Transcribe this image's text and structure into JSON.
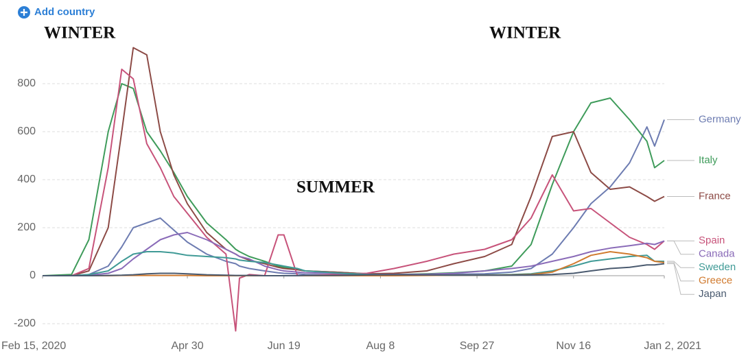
{
  "add_button": "Add country",
  "chart_data": {
    "type": "line",
    "annotations": [
      "WINTER",
      "WINTER",
      "SUMMER"
    ],
    "x": [
      "2020-02-15",
      "2020-03-01",
      "2020-03-10",
      "2020-03-20",
      "2020-03-27",
      "2020-04-02",
      "2020-04-09",
      "2020-04-16",
      "2020-04-23",
      "2020-04-30",
      "2020-05-10",
      "2020-05-20",
      "2020-05-25",
      "2020-05-27",
      "2020-06-01",
      "2020-06-09",
      "2020-06-16",
      "2020-06-19",
      "2020-06-26",
      "2020-06-30",
      "2020-07-15",
      "2020-08-01",
      "2020-08-15",
      "2020-09-01",
      "2020-09-15",
      "2020-10-01",
      "2020-10-15",
      "2020-10-25",
      "2020-11-05",
      "2020-11-16",
      "2020-11-25",
      "2020-12-05",
      "2020-12-15",
      "2020-12-24",
      "2020-12-28",
      "2021-01-02"
    ],
    "xlim": [
      "2020-02-15",
      "2021-01-02"
    ],
    "xticks": [
      {
        "value": "2020-02-15",
        "label": "Feb 15, 2020"
      },
      {
        "value": "2020-04-30",
        "label": "Apr 30"
      },
      {
        "value": "2020-06-19",
        "label": "Jun 19"
      },
      {
        "value": "2020-08-08",
        "label": "Aug 8"
      },
      {
        "value": "2020-09-27",
        "label": "Sep 27"
      },
      {
        "value": "2020-11-16",
        "label": "Nov 16"
      },
      {
        "value": "2021-01-02",
        "label": "Jan 2, 2021"
      }
    ],
    "ylim": [
      -240,
      980
    ],
    "yticks": [
      -200,
      0,
      200,
      400,
      600,
      800
    ],
    "grid": true,
    "series": [
      {
        "name": "Germany",
        "color": "#6d7cb1",
        "values": [
          0,
          0,
          5,
          40,
          120,
          200,
          220,
          240,
          190,
          140,
          90,
          60,
          50,
          40,
          30,
          20,
          12,
          10,
          8,
          5,
          4,
          3,
          3,
          4,
          6,
          8,
          15,
          30,
          90,
          200,
          300,
          370,
          470,
          620,
          540,
          650
        ]
      },
      {
        "name": "Italy",
        "color": "#3e9b5a",
        "values": [
          0,
          5,
          150,
          600,
          800,
          780,
          600,
          520,
          430,
          330,
          220,
          150,
          110,
          100,
          80,
          60,
          40,
          35,
          25,
          20,
          15,
          8,
          5,
          8,
          12,
          20,
          40,
          130,
          380,
          600,
          720,
          740,
          650,
          560,
          450,
          480
        ]
      },
      {
        "name": "France",
        "color": "#8c4a45",
        "values": [
          0,
          0,
          20,
          200,
          600,
          950,
          920,
          600,
          420,
          300,
          180,
          110,
          90,
          80,
          65,
          50,
          35,
          30,
          25,
          20,
          15,
          8,
          10,
          20,
          50,
          80,
          130,
          330,
          580,
          600,
          430,
          360,
          370,
          330,
          310,
          330
        ]
      },
      {
        "name": "Spain",
        "color": "#c7537a",
        "values": [
          0,
          0,
          30,
          450,
          860,
          820,
          550,
          450,
          330,
          260,
          160,
          90,
          -230,
          -10,
          5,
          0,
          170,
          170,
          0,
          0,
          5,
          10,
          30,
          60,
          90,
          110,
          150,
          240,
          420,
          270,
          280,
          220,
          160,
          130,
          110,
          145
        ]
      },
      {
        "name": "Canada",
        "color": "#8a6bb8",
        "values": [
          0,
          0,
          2,
          10,
          30,
          70,
          110,
          150,
          170,
          180,
          150,
          110,
          90,
          80,
          70,
          40,
          25,
          20,
          15,
          12,
          10,
          5,
          5,
          6,
          10,
          20,
          30,
          40,
          60,
          80,
          100,
          115,
          125,
          135,
          130,
          145
        ]
      },
      {
        "name": "Sweden",
        "color": "#3f9a96",
        "values": [
          0,
          0,
          5,
          20,
          60,
          90,
          100,
          100,
          95,
          85,
          80,
          75,
          70,
          65,
          60,
          55,
          45,
          40,
          30,
          20,
          12,
          5,
          3,
          2,
          2,
          3,
          5,
          8,
          20,
          40,
          60,
          70,
          80,
          85,
          60,
          60
        ]
      },
      {
        "name": "Greece",
        "color": "#d07a2e",
        "values": [
          0,
          0,
          0,
          0,
          1,
          1,
          1,
          1,
          1,
          1,
          0,
          0,
          0,
          0,
          0,
          0,
          0,
          0,
          0,
          0,
          0,
          0,
          0,
          1,
          2,
          2,
          3,
          5,
          15,
          50,
          85,
          100,
          90,
          75,
          60,
          55
        ]
      },
      {
        "name": "Japan",
        "color": "#4a5a6f",
        "values": [
          0,
          0,
          0,
          1,
          2,
          4,
          8,
          10,
          10,
          8,
          4,
          2,
          1,
          1,
          1,
          0,
          0,
          0,
          0,
          1,
          1,
          3,
          4,
          3,
          2,
          2,
          2,
          3,
          5,
          10,
          20,
          30,
          35,
          45,
          45,
          50
        ]
      }
    ]
  }
}
